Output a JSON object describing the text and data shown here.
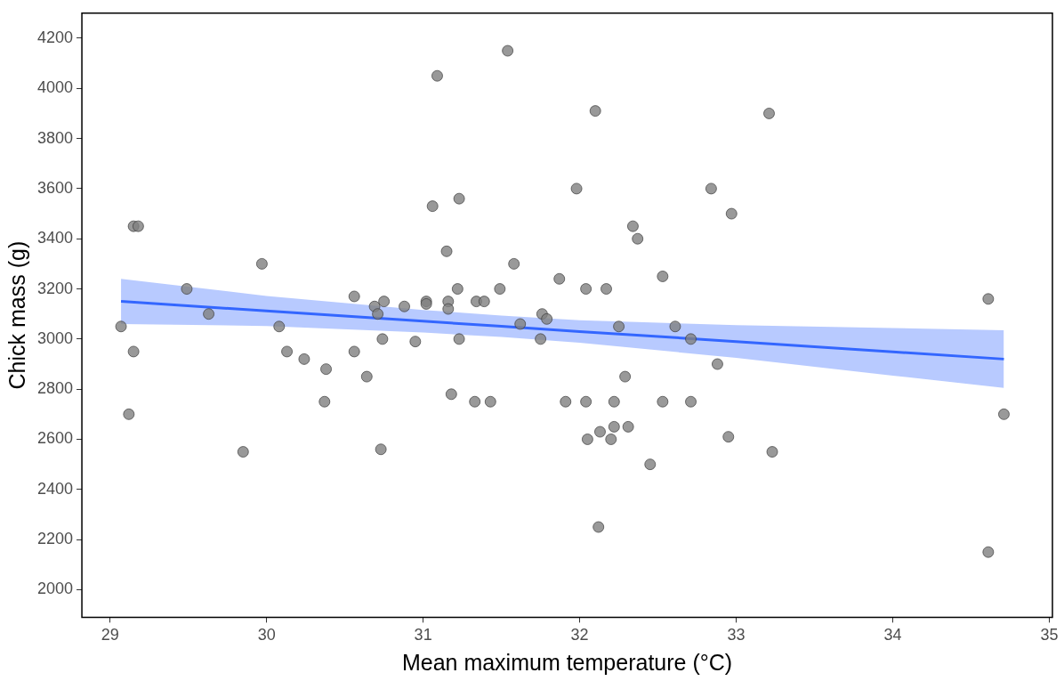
{
  "chart_data": {
    "type": "scatter",
    "xlabel": "Mean maximum temperature (°C)",
    "ylabel": "Chick mass (g)",
    "xlim": [
      28.82,
      35.02
    ],
    "xticks": [
      29,
      30,
      31,
      32,
      33,
      34,
      35
    ],
    "ylim": [
      1890,
      4300
    ],
    "yticks": [
      2000,
      2200,
      2400,
      2600,
      2800,
      3000,
      3200,
      3400,
      3600,
      3800,
      4000,
      4200
    ],
    "grid": false,
    "marker": "circle",
    "series": [
      {
        "color": "#7f7f7f",
        "x": [
          29.07,
          29.12,
          29.15,
          29.15,
          29.18,
          29.49,
          29.63,
          29.85,
          29.97,
          30.08,
          30.13,
          30.24,
          30.37,
          30.38,
          30.56,
          30.56,
          30.64,
          30.69,
          30.71,
          30.73,
          30.74,
          30.75,
          30.88,
          30.95,
          31.02,
          31.02,
          31.06,
          31.09,
          31.15,
          31.16,
          31.16,
          31.18,
          31.22,
          31.23,
          31.23,
          31.33,
          31.34,
          31.39,
          31.43,
          31.49,
          31.54,
          31.58,
          31.62,
          31.75,
          31.76,
          31.79,
          31.87,
          31.91,
          31.98,
          32.04,
          32.04,
          32.05,
          32.1,
          32.12,
          32.13,
          32.17,
          32.2,
          32.22,
          32.22,
          32.25,
          32.29,
          32.31,
          32.34,
          32.37,
          32.45,
          32.53,
          32.53,
          32.61,
          32.71,
          32.71,
          32.84,
          32.88,
          32.95,
          32.97,
          33.21,
          33.23,
          34.61,
          34.61,
          34.71
        ],
        "values": [
          3050,
          2700,
          2950,
          3450,
          3450,
          3200,
          3100,
          2550,
          3300,
          3050,
          2950,
          2920,
          2750,
          2880,
          3170,
          2950,
          2850,
          3130,
          3100,
          2560,
          3000,
          3150,
          3130,
          2990,
          3150,
          3140,
          3530,
          4050,
          3350,
          3150,
          3120,
          2780,
          3200,
          3560,
          3000,
          2750,
          3150,
          3150,
          2750,
          3200,
          4150,
          3300,
          3060,
          3000,
          3100,
          3080,
          3240,
          2750,
          3600,
          3200,
          2750,
          2600,
          3910,
          2250,
          2630,
          3200,
          2600,
          2750,
          2650,
          3050,
          2850,
          2650,
          3450,
          3400,
          2500,
          3250,
          2750,
          3050,
          3000,
          2750,
          3600,
          2900,
          2610,
          3500,
          3900,
          2550,
          3160,
          2150,
          2700
        ]
      },
      {
        "type": "line",
        "color": "#3366ff",
        "marker": "none",
        "x": [
          29.07,
          30,
          31,
          31.5,
          32,
          33,
          34,
          34.71
        ],
        "values": [
          3150,
          3112,
          3071,
          3051,
          3030,
          2990,
          2949,
          2920
        ],
        "lower": [
          3060,
          3052,
          3026,
          3008,
          2985,
          2925,
          2854,
          2805
        ],
        "upper": [
          3240,
          3172,
          3116,
          3094,
          3075,
          3055,
          3044,
          3035
        ]
      }
    ]
  }
}
